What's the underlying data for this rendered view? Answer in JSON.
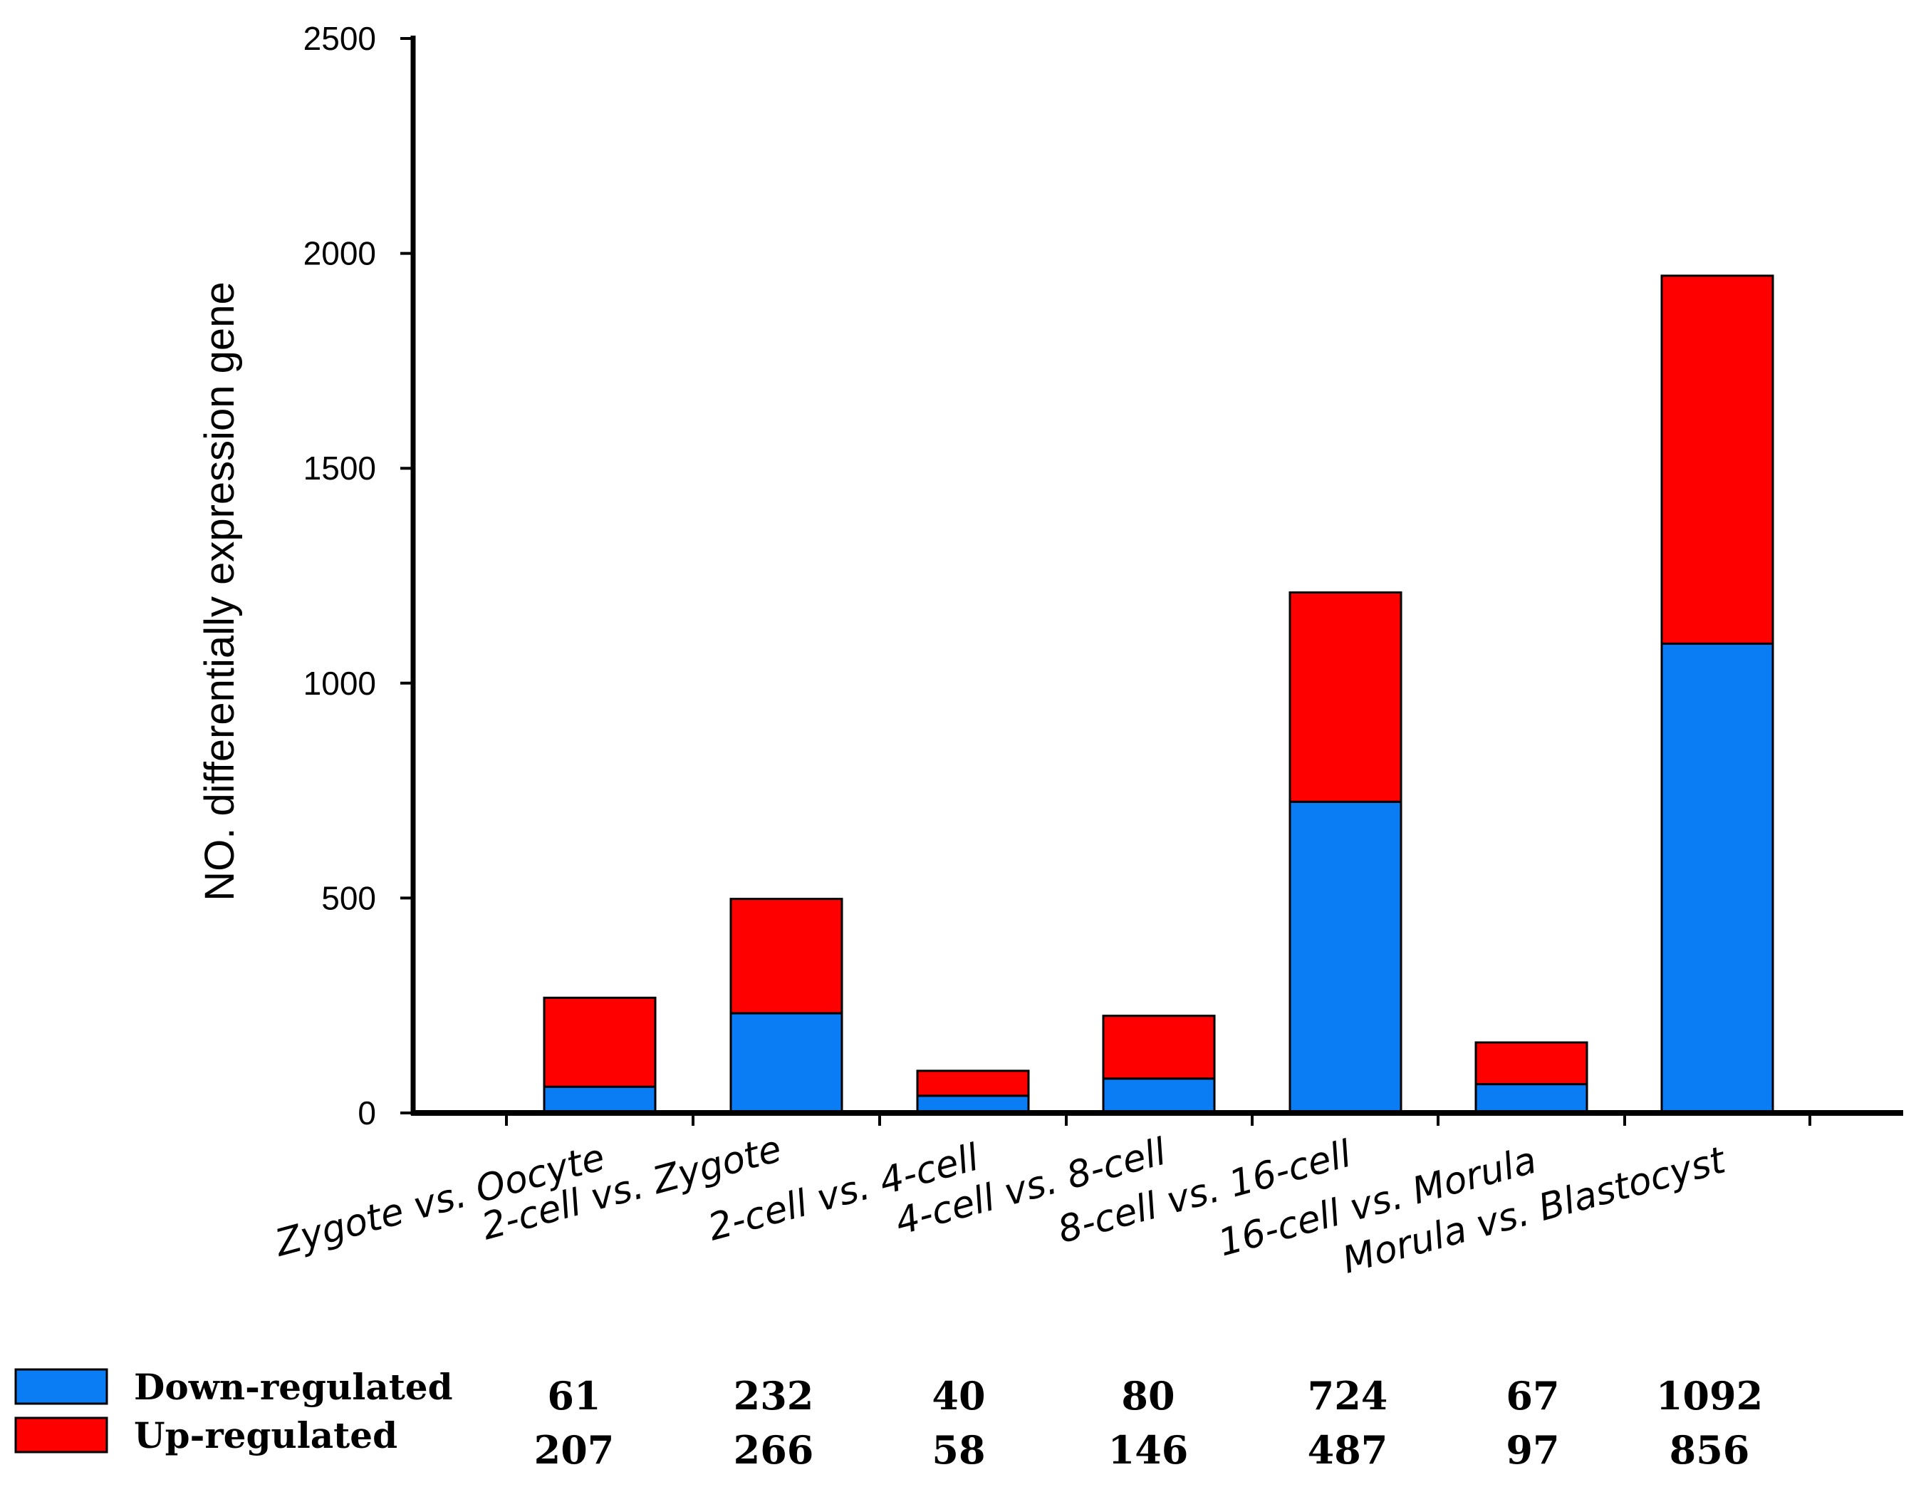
{
  "chart_data": {
    "type": "bar",
    "stacked": true,
    "title": "",
    "xlabel": "",
    "ylabel": "NO. differentially expression gene",
    "ylim": [
      0,
      2500
    ],
    "yticks": [
      0,
      500,
      1000,
      1500,
      2000,
      2500
    ],
    "grid": false,
    "legend_position": "bottom-left",
    "categories": [
      "Zygote vs. Oocyte",
      "2-cell vs. Zygote",
      "2-cell vs. 4-cell",
      "4-cell vs. 8-cell",
      "8-cell vs. 16-cell",
      "16-cell vs. Morula",
      "Morula vs. Blastocyst"
    ],
    "series": [
      {
        "name": "Down-regulated",
        "color": "#0a7df5",
        "values": [
          61,
          232,
          40,
          80,
          724,
          67,
          1092
        ]
      },
      {
        "name": "Up-regulated",
        "color": "#ff0000",
        "values": [
          207,
          266,
          58,
          146,
          487,
          97,
          856
        ]
      }
    ]
  }
}
